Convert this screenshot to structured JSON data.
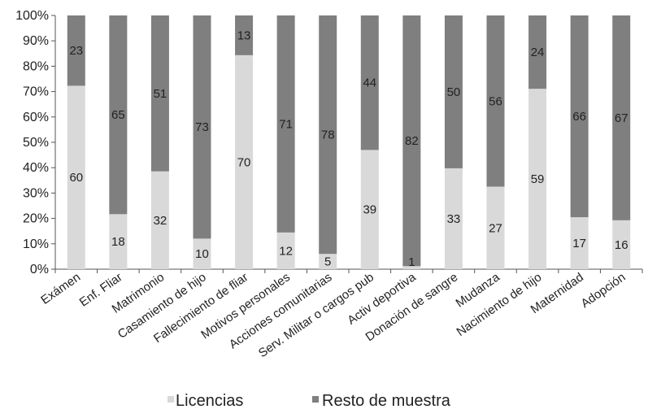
{
  "chart_data": {
    "type": "bar",
    "stacked": true,
    "normalized": true,
    "categories": [
      "Exámen",
      "Enf. Fliar",
      "Matrimonio",
      "Casamiento de hijo",
      "Fallecimiento de fliar",
      "Motivos personales",
      "Acciones comunitarias",
      "Serv. Militar o cargos pub",
      "Activ deportiva",
      "Donación de sangre",
      "Mudanza",
      "Nacimiento de hijo",
      "Maternidad",
      "Adopción"
    ],
    "series": [
      {
        "name": "Licencias",
        "values": [
          60,
          18,
          32,
          10,
          70,
          12,
          5,
          39,
          1,
          33,
          27,
          59,
          17,
          16
        ],
        "color": "#d9d9d9"
      },
      {
        "name": "Resto de muestra",
        "values": [
          23,
          65,
          51,
          73,
          13,
          71,
          78,
          44,
          82,
          50,
          56,
          24,
          66,
          67
        ],
        "color": "#7f7f7f"
      }
    ],
    "y_ticks": [
      "0%",
      "10%",
      "20%",
      "30%",
      "40%",
      "50%",
      "60%",
      "70%",
      "80%",
      "90%",
      "100%"
    ],
    "ylim": [
      0,
      100
    ],
    "grid": false,
    "legend": "bottom"
  }
}
